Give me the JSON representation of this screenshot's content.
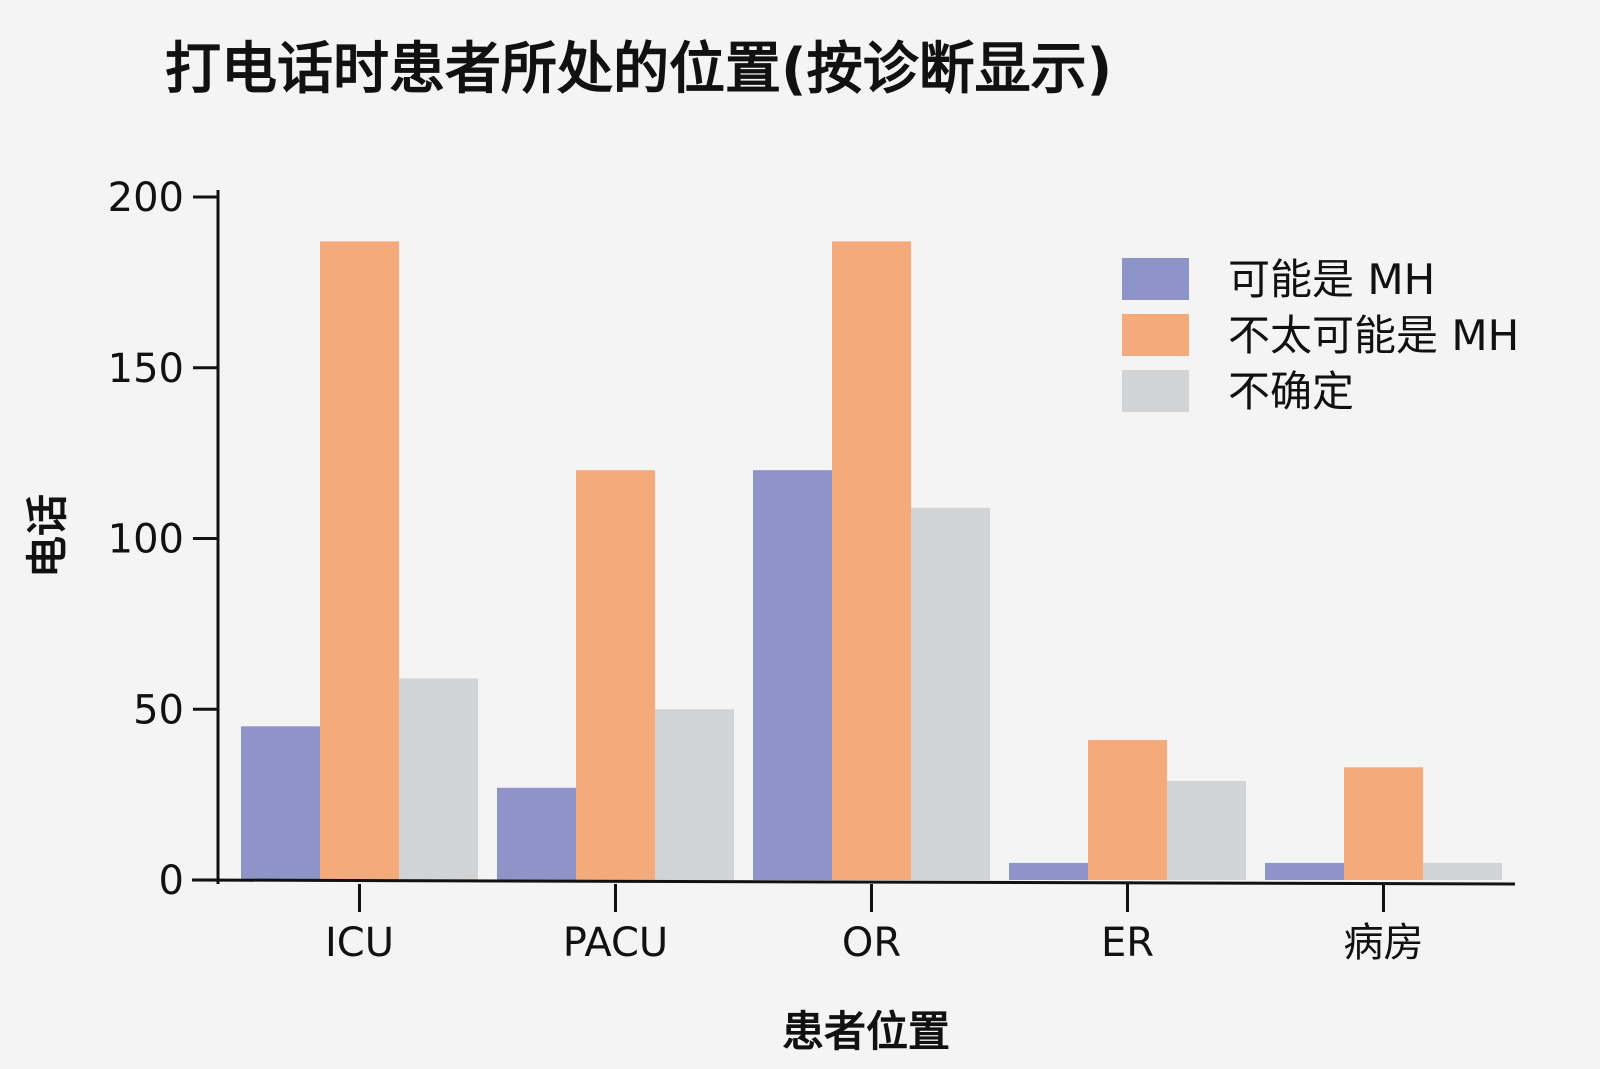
{
  "chart_data": {
    "type": "bar",
    "title": "打电话时患者所处的位置(按诊断显示)",
    "xlabel": "患者位置",
    "ylabel": "电话",
    "categories": [
      "ICU",
      "PACU",
      "OR",
      "ER",
      "病房"
    ],
    "series": [
      {
        "name": "可能是 MH",
        "color": "#8e93c8",
        "values": [
          45,
          27,
          120,
          5,
          5
        ]
      },
      {
        "name": "不太可能是 MH",
        "color": "#f5aa7c",
        "values": [
          187,
          120,
          187,
          41,
          33
        ]
      },
      {
        "name": "不确定",
        "color": "#d2d3d4",
        "values": [
          59,
          50,
          109,
          29,
          5
        ]
      }
    ],
    "ylim": [
      0,
      200
    ],
    "yticks": [
      0,
      50,
      100,
      150,
      200
    ],
    "grid": false,
    "legend_position": "top-right"
  }
}
